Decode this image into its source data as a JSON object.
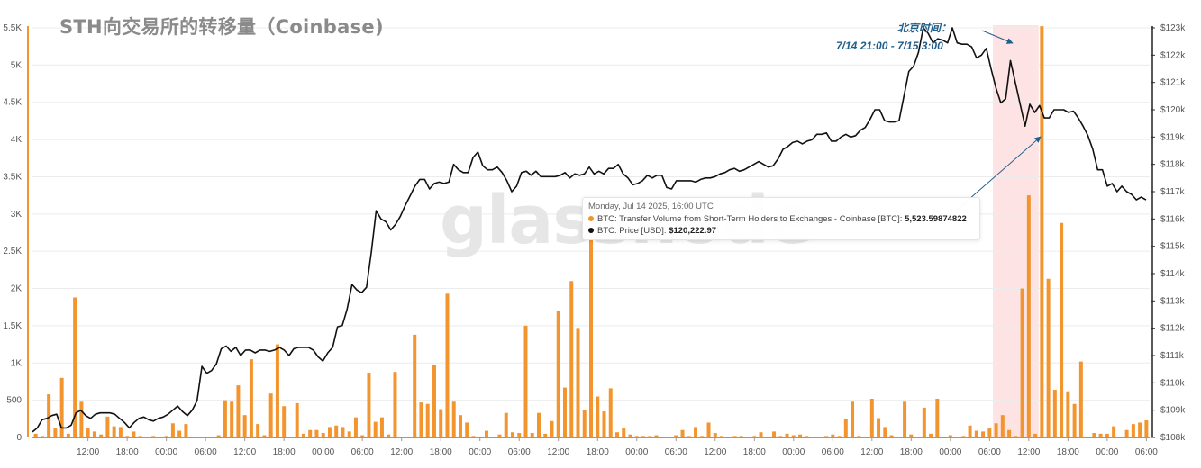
{
  "title": "STH向交易所的转移量（Coinbase)",
  "watermark": "glassnode",
  "annotation": {
    "line1": "北京时间：",
    "line2": "7/14 21:00 - 7/15 3:00",
    "color": "#1f5f8b"
  },
  "tooltip": {
    "date": "Monday, Jul 14 2025, 16:00 UTC",
    "series1_label": "BTC: Transfer Volume from Short-Term Holders to Exchanges - Coinbase [BTC]:",
    "series1_value": "5,523.59874822",
    "series2_label": "BTC: Price [USD]:",
    "series2_value": "$120,222.97"
  },
  "chart_data": {
    "type": "bar",
    "x_tick_labels": [
      "12:00",
      "18:00",
      "00:00",
      "06:00",
      "12:00",
      "18:00",
      "00:00",
      "06:00",
      "12:00",
      "18:00",
      "00:00",
      "06:00",
      "12:00",
      "18:00",
      "00:00",
      "06:00",
      "12:00",
      "18:00",
      "00:00",
      "06:00",
      "12:00",
      "18:00",
      "00:00",
      "06:00",
      "12:00",
      "18:00",
      "00:00",
      "06:00"
    ],
    "left_axis": {
      "ticks": [
        0,
        500,
        1000,
        1500,
        2000,
        2500,
        3000,
        3500,
        4000,
        4500,
        5000,
        5500
      ],
      "tick_labels": [
        "0",
        "500",
        "1K",
        "1.5K",
        "2K",
        "2.5K",
        "3K",
        "3.5K",
        "4K",
        "4.5K",
        "5K",
        "5.5K"
      ],
      "ylim": [
        0,
        5500
      ]
    },
    "right_axis": {
      "ticks": [
        108000,
        109000,
        110000,
        111000,
        112000,
        113000,
        114000,
        115000,
        116000,
        117000,
        118000,
        119000,
        120000,
        121000,
        122000,
        123000
      ],
      "tick_labels": [
        "$108k",
        "$109k",
        "$110k",
        "$111k",
        "$112k",
        "$113k",
        "$114k",
        "$115k",
        "$116k",
        "$117k",
        "$118k",
        "$119k",
        "$120k",
        "$121k",
        "$122k",
        "$123k"
      ],
      "ylim": [
        108000,
        123000
      ]
    },
    "grid": true,
    "highlight_region": {
      "from_bar": 147,
      "to_bar": 153,
      "color": "#fde3e3"
    },
    "series": [
      {
        "name": "BTC: Transfer Volume from Short-Term Holders to Exchanges - Coinbase [BTC]",
        "type": "bar",
        "color": "#f2952f",
        "values": [
          50,
          20,
          580,
          120,
          800,
          50,
          1880,
          480,
          120,
          80,
          40,
          280,
          150,
          140,
          20,
          80,
          20,
          10,
          20,
          10,
          20,
          190,
          90,
          180,
          10,
          10,
          10,
          10,
          30,
          500,
          480,
          700,
          300,
          1050,
          180,
          30,
          590,
          1250,
          420,
          10,
          460,
          50,
          100,
          100,
          60,
          140,
          160,
          140,
          80,
          270,
          30,
          870,
          210,
          270,
          40,
          880,
          10,
          10,
          1380,
          470,
          450,
          970,
          380,
          1930,
          480,
          300,
          200,
          20,
          10,
          90,
          10,
          40,
          330,
          70,
          60,
          1500,
          60,
          330,
          50,
          220,
          1700,
          670,
          2100,
          1470,
          370,
          2820,
          550,
          350,
          660,
          70,
          120,
          40,
          20,
          20,
          20,
          30,
          10,
          10,
          30,
          100,
          20,
          140,
          20,
          200,
          60,
          20,
          10,
          20,
          20,
          10,
          20,
          70,
          10,
          80,
          20,
          50,
          30,
          40,
          20,
          10,
          10,
          20,
          40,
          20,
          250,
          480,
          20,
          10,
          520,
          260,
          140,
          30,
          10,
          480,
          40,
          10,
          400,
          50,
          520,
          10,
          30,
          10,
          20,
          160,
          90,
          80,
          120,
          190,
          300,
          100,
          20,
          2000,
          3250,
          50,
          5523,
          2130,
          640,
          2880,
          620,
          450,
          1020,
          10,
          60,
          50,
          50,
          150,
          10,
          100,
          180,
          200,
          230
        ]
      },
      {
        "name": "BTC: Price [USD]",
        "type": "line",
        "color": "#111111",
        "values": [
          108200,
          108350,
          108650,
          108700,
          108800,
          108850,
          108350,
          108350,
          108450,
          108900,
          109000,
          108800,
          108700,
          108850,
          108900,
          108900,
          108900,
          108850,
          108700,
          108550,
          108350,
          108550,
          108700,
          108750,
          108650,
          108600,
          108700,
          108750,
          108850,
          109000,
          109150,
          108950,
          108800,
          109000,
          109350,
          110600,
          110350,
          110450,
          110700,
          111250,
          111350,
          111150,
          111300,
          111000,
          111200,
          111200,
          111100,
          111200,
          111200,
          111150,
          111200,
          111300,
          111200,
          111000,
          111250,
          111300,
          111300,
          111300,
          111200,
          110950,
          110800,
          111100,
          111300,
          112050,
          112100,
          112700,
          113600,
          113400,
          113300,
          113500,
          114800,
          116300,
          116000,
          115900,
          115600,
          115800,
          116100,
          116500,
          116850,
          117200,
          117450,
          117450,
          117100,
          117300,
          117350,
          117300,
          117350,
          118000,
          117800,
          117700,
          117700,
          118250,
          118450,
          117950,
          117800,
          117800,
          117900,
          117700,
          117400,
          117000,
          117200,
          117700,
          117750,
          117600,
          117750,
          117550,
          117550,
          117550,
          117550,
          117600,
          117700,
          117500,
          117650,
          117600,
          117650,
          117900,
          117650,
          117750,
          117650,
          117850,
          117850,
          118000,
          117650,
          117500,
          117250,
          117300,
          117400,
          117600,
          117500,
          117600,
          117600,
          117150,
          117100,
          117400,
          117400,
          117400,
          117400,
          117350,
          117450,
          117500,
          117500,
          117550,
          117650,
          117700,
          117800,
          117850,
          117750,
          117800,
          117900,
          118000,
          118100,
          118000,
          117900,
          117950,
          118200,
          118550,
          118650,
          118800,
          118850,
          118750,
          118850,
          118900,
          119100,
          119100,
          119150,
          118850,
          118850,
          119000,
          119100,
          119000,
          119050,
          119250,
          119350,
          119650,
          120000,
          120000,
          119600,
          119550,
          119550,
          119600,
          120500,
          121400,
          121600,
          122100,
          123000,
          122800,
          122450,
          122600,
          122550,
          122450,
          123000,
          122450,
          122400,
          122400,
          122300,
          121900,
          122000,
          122250,
          121500,
          120800,
          120250,
          120400,
          121800,
          121000,
          120200,
          119400,
          120200,
          119900,
          120150,
          119700,
          119700,
          120000,
          120000,
          120000,
          119900,
          119950,
          119700,
          119400,
          119050,
          118550,
          117800,
          117800,
          117200,
          117300,
          117000,
          117200,
          117000,
          116900,
          116700,
          116800,
          116700
        ]
      }
    ]
  }
}
